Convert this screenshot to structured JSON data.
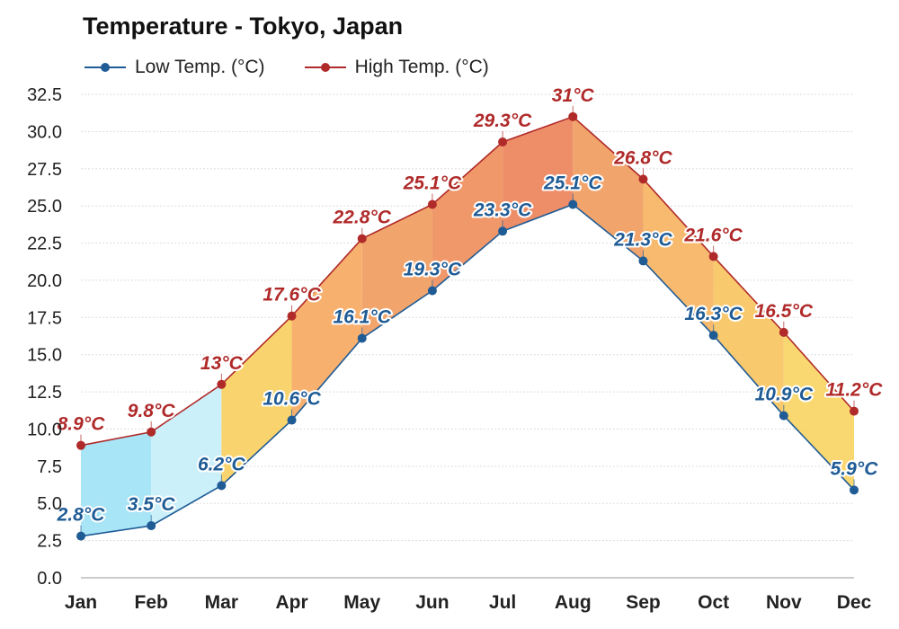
{
  "chart_data": {
    "type": "line",
    "title": "Temperature - Tokyo, Japan",
    "categories": [
      "Jan",
      "Feb",
      "Mar",
      "Apr",
      "May",
      "Jun",
      "Jul",
      "Aug",
      "Sep",
      "Oct",
      "Nov",
      "Dec"
    ],
    "series": [
      {
        "name": "Low Temp. (°C)",
        "color": "#1f5b95",
        "values": [
          2.8,
          3.5,
          6.2,
          10.6,
          16.1,
          19.3,
          23.3,
          25.1,
          21.3,
          16.3,
          10.9,
          5.9
        ],
        "labels": [
          "2.8°C",
          "3.5°C",
          "6.2°C",
          "10.6°C",
          "16.1°C",
          "19.3°C",
          "23.3°C",
          "25.1°C",
          "21.3°C",
          "16.3°C",
          "10.9°C",
          "5.9°C"
        ]
      },
      {
        "name": "High Temp. (°C)",
        "color": "#b02a2a",
        "values": [
          8.9,
          9.8,
          13,
          17.6,
          22.8,
          25.1,
          29.3,
          31,
          26.8,
          21.6,
          16.5,
          11.2
        ],
        "labels": [
          "8.9°C",
          "9.8°C",
          "13°C",
          "17.6°C",
          "22.8°C",
          "25.1°C",
          "29.3°C",
          "31°C",
          "26.8°C",
          "21.6°C",
          "16.5°C",
          "11.2°C"
        ]
      }
    ],
    "ylim": [
      0,
      32.5
    ],
    "yticks": [
      "0.0",
      "2.5",
      "5.0",
      "7.5",
      "10.0",
      "12.5",
      "15.0",
      "17.5",
      "20.0",
      "22.5",
      "25.0",
      "27.5",
      "30.0",
      "32.5"
    ],
    "grid": true,
    "legend_position": "top-left",
    "band_fill_colors": [
      "#9ee2f5",
      "#c7eef9",
      "#f8cf5e",
      "#f6a75e",
      "#f09a5c",
      "#ee8d5a",
      "#ec8258",
      "#f09a5c",
      "#f6b35e",
      "#f8c35e",
      "#f8d462",
      "#c7eef9"
    ]
  }
}
